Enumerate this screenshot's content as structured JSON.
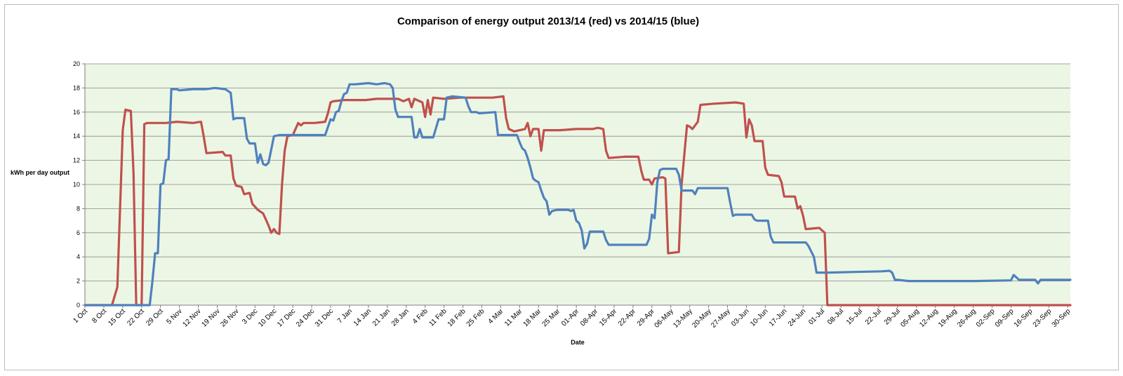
{
  "chart_data": {
    "type": "line",
    "title": "Comparison of energy output 2013/14 (red) vs 2014/15 (blue)",
    "xlabel": "Date",
    "ylabel": "kWh per day output",
    "ylim": [
      0,
      20
    ],
    "y_ticks": [
      "0",
      "2",
      "4",
      "6",
      "8",
      "10",
      "12",
      "14",
      "16",
      "18",
      "20"
    ],
    "grid": "horizontal",
    "background": "#ecf6e4",
    "x_tick_labels": [
      "1 Oct",
      "8 Oct",
      "15 Oct",
      "22 Oct",
      "29 Oct",
      "5 Nov",
      "12 Nov",
      "19 Nov",
      "26 Nov",
      "3 Dec",
      "10 Dec",
      "17 Dec",
      "24 Dec",
      "31 Dec",
      "7 Jan",
      "14 Jan",
      "21 Jan",
      "28 Jan",
      "4 Feb",
      "11 Feb",
      "18 Feb",
      "25 Feb",
      "4 Mar",
      "11 Mar",
      "18 Mar",
      "25 Mar",
      "01-Apr",
      "08-Apr",
      "15-Apr",
      "22-Apr",
      "29-Apr",
      "06-May",
      "13-May",
      "20-May",
      "27-May",
      "03-Jun",
      "10-Jun",
      "17-Jun",
      "24-Jun",
      "01-Jul",
      "08-Jul",
      "15-Jul",
      "22-Jul",
      "29-Jul",
      "05-Aug",
      "12-Aug",
      "19-Aug",
      "26-Aug",
      "02-Sep",
      "09-Sep",
      "16-Sep",
      "23-Sep",
      "30-Sep"
    ],
    "series": [
      {
        "color": "#c0504d",
        "points": [
          [
            0,
            0
          ],
          [
            10,
            0
          ],
          [
            12,
            1.5
          ],
          [
            14,
            14.5
          ],
          [
            15,
            16.2
          ],
          [
            17,
            16.1
          ],
          [
            18,
            11
          ],
          [
            19,
            0
          ],
          [
            21,
            0
          ],
          [
            22,
            15
          ],
          [
            23,
            15.1
          ],
          [
            30,
            15.1
          ],
          [
            34,
            15.2
          ],
          [
            40,
            15.1
          ],
          [
            43,
            15.2
          ],
          [
            44,
            14
          ],
          [
            45,
            12.6
          ],
          [
            51,
            12.7
          ],
          [
            52,
            12.4
          ],
          [
            54,
            12.4
          ],
          [
            55,
            10.5
          ],
          [
            56,
            9.9
          ],
          [
            58,
            9.8
          ],
          [
            59,
            9.2
          ],
          [
            61,
            9.3
          ],
          [
            62,
            8.4
          ],
          [
            64,
            7.9
          ],
          [
            66,
            7.6
          ],
          [
            68,
            6.6
          ],
          [
            69,
            6
          ],
          [
            70,
            6.3
          ],
          [
            71,
            6
          ],
          [
            72,
            5.9
          ],
          [
            73,
            10
          ],
          [
            74,
            12.8
          ],
          [
            75,
            14
          ],
          [
            77,
            14.1
          ],
          [
            79,
            15.1
          ],
          [
            80,
            14.9
          ],
          [
            81,
            15.1
          ],
          [
            85,
            15.1
          ],
          [
            89,
            15.2
          ],
          [
            90,
            15.9
          ],
          [
            91,
            16.8
          ],
          [
            92,
            16.9
          ],
          [
            96,
            17
          ],
          [
            104,
            17
          ],
          [
            108,
            17.1
          ],
          [
            116,
            17.1
          ],
          [
            118,
            16.9
          ],
          [
            120,
            17.1
          ],
          [
            121,
            16.4
          ],
          [
            122,
            17.1
          ],
          [
            125,
            16.8
          ],
          [
            126,
            15.6
          ],
          [
            127,
            17
          ],
          [
            128,
            15.8
          ],
          [
            129,
            17.2
          ],
          [
            133,
            17.1
          ],
          [
            139,
            17.2
          ],
          [
            145,
            17.2
          ],
          [
            151,
            17.2
          ],
          [
            155,
            17.3
          ],
          [
            156,
            15.5
          ],
          [
            157,
            14.6
          ],
          [
            159,
            14.4
          ],
          [
            163,
            14.6
          ],
          [
            164,
            15.1
          ],
          [
            165,
            14
          ],
          [
            166,
            14.6
          ],
          [
            168,
            14.6
          ],
          [
            169,
            12.8
          ],
          [
            170,
            14.5
          ],
          [
            176,
            14.5
          ],
          [
            182,
            14.6
          ],
          [
            188,
            14.6
          ],
          [
            190,
            14.7
          ],
          [
            192,
            14.6
          ],
          [
            193,
            12.8
          ],
          [
            194,
            12.2
          ],
          [
            200,
            12.3
          ],
          [
            205,
            12.3
          ],
          [
            206,
            11.2
          ],
          [
            207,
            10.4
          ],
          [
            209,
            10.4
          ],
          [
            210,
            10
          ],
          [
            211,
            10.5
          ],
          [
            214,
            10.6
          ],
          [
            215,
            10.5
          ],
          [
            216,
            4.3
          ],
          [
            220,
            4.4
          ],
          [
            221,
            10
          ],
          [
            223,
            14.9
          ],
          [
            224,
            14.8
          ],
          [
            225,
            14.6
          ],
          [
            227,
            15.2
          ],
          [
            228,
            16.6
          ],
          [
            233,
            16.7
          ],
          [
            241,
            16.8
          ],
          [
            244,
            16.7
          ],
          [
            245,
            13.9
          ],
          [
            246,
            15.4
          ],
          [
            247,
            14.9
          ],
          [
            248,
            13.6
          ],
          [
            251,
            13.6
          ],
          [
            252,
            11.4
          ],
          [
            253,
            10.8
          ],
          [
            257,
            10.7
          ],
          [
            258,
            10.2
          ],
          [
            259,
            9
          ],
          [
            263,
            9
          ],
          [
            264,
            8
          ],
          [
            265,
            8.2
          ],
          [
            266,
            7.4
          ],
          [
            267,
            6.3
          ],
          [
            272,
            6.4
          ],
          [
            274,
            6
          ],
          [
            275,
            0
          ],
          [
            365,
            0
          ]
        ]
      },
      {
        "color": "#4f81bd",
        "points": [
          [
            0,
            0
          ],
          [
            10,
            0
          ],
          [
            21,
            0
          ],
          [
            24,
            0
          ],
          [
            25,
            2
          ],
          [
            26,
            4.3
          ],
          [
            27,
            4.3
          ],
          [
            28,
            10
          ],
          [
            29,
            10.1
          ],
          [
            30,
            12
          ],
          [
            31,
            12.1
          ],
          [
            32,
            17.9
          ],
          [
            34,
            17.9
          ],
          [
            35,
            17.8
          ],
          [
            40,
            17.9
          ],
          [
            45,
            17.9
          ],
          [
            48,
            18
          ],
          [
            52,
            17.9
          ],
          [
            54,
            17.6
          ],
          [
            55,
            15.4
          ],
          [
            56,
            15.5
          ],
          [
            59,
            15.5
          ],
          [
            60,
            13.8
          ],
          [
            61,
            13.4
          ],
          [
            63,
            13.4
          ],
          [
            64,
            11.8
          ],
          [
            65,
            12.5
          ],
          [
            66,
            11.7
          ],
          [
            67,
            11.6
          ],
          [
            68,
            11.8
          ],
          [
            70,
            14
          ],
          [
            72,
            14.1
          ],
          [
            79,
            14.1
          ],
          [
            86,
            14.1
          ],
          [
            89,
            14.1
          ],
          [
            91,
            15.4
          ],
          [
            92,
            15.3
          ],
          [
            93,
            16
          ],
          [
            94,
            16.1
          ],
          [
            95,
            16.9
          ],
          [
            96,
            17.5
          ],
          [
            97,
            17.6
          ],
          [
            98,
            18.3
          ],
          [
            100,
            18.3
          ],
          [
            105,
            18.4
          ],
          [
            108,
            18.3
          ],
          [
            111,
            18.4
          ],
          [
            113,
            18.3
          ],
          [
            114,
            18
          ],
          [
            115,
            16.2
          ],
          [
            116,
            15.6
          ],
          [
            121,
            15.6
          ],
          [
            122,
            13.9
          ],
          [
            123,
            13.9
          ],
          [
            124,
            14.6
          ],
          [
            125,
            13.9
          ],
          [
            129,
            13.9
          ],
          [
            131,
            15.4
          ],
          [
            133,
            15.4
          ],
          [
            134,
            17.2
          ],
          [
            136,
            17.3
          ],
          [
            141,
            17.2
          ],
          [
            142,
            16.5
          ],
          [
            143,
            16
          ],
          [
            145,
            16
          ],
          [
            146,
            15.9
          ],
          [
            152,
            16
          ],
          [
            153,
            14.1
          ],
          [
            155,
            14.1
          ],
          [
            160,
            14.1
          ],
          [
            161,
            13.5
          ],
          [
            162,
            13
          ],
          [
            163,
            12.8
          ],
          [
            164,
            12.2
          ],
          [
            165,
            11.4
          ],
          [
            166,
            10.5
          ],
          [
            167,
            10.3
          ],
          [
            168,
            10.2
          ],
          [
            169,
            9.5
          ],
          [
            170,
            8.9
          ],
          [
            171,
            8.6
          ],
          [
            172,
            7.5
          ],
          [
            173,
            7.8
          ],
          [
            175,
            7.9
          ],
          [
            179,
            7.9
          ],
          [
            180,
            7.8
          ],
          [
            181,
            7.9
          ],
          [
            182,
            7
          ],
          [
            183,
            6.8
          ],
          [
            184,
            6.2
          ],
          [
            185,
            4.7
          ],
          [
            186,
            5.1
          ],
          [
            187,
            6.1
          ],
          [
            192,
            6.1
          ],
          [
            193,
            5.4
          ],
          [
            194,
            5
          ],
          [
            196,
            5
          ],
          [
            199,
            5
          ],
          [
            206,
            5
          ],
          [
            208,
            5
          ],
          [
            209,
            5.5
          ],
          [
            210,
            7.5
          ],
          [
            211,
            7.2
          ],
          [
            212,
            10.2
          ],
          [
            213,
            11.2
          ],
          [
            214,
            11.3
          ],
          [
            219,
            11.3
          ],
          [
            220,
            10.8
          ],
          [
            221,
            9.5
          ],
          [
            225,
            9.5
          ],
          [
            226,
            9.2
          ],
          [
            227,
            9.7
          ],
          [
            233,
            9.7
          ],
          [
            238,
            9.7
          ],
          [
            239,
            8.5
          ],
          [
            240,
            7.4
          ],
          [
            241,
            7.5
          ],
          [
            247,
            7.5
          ],
          [
            248,
            7.1
          ],
          [
            249,
            7
          ],
          [
            253,
            7
          ],
          [
            254,
            5.7
          ],
          [
            255,
            5.2
          ],
          [
            258,
            5.2
          ],
          [
            262,
            5.2
          ],
          [
            267,
            5.2
          ],
          [
            268,
            4.9
          ],
          [
            270,
            4
          ],
          [
            271,
            2.7
          ],
          [
            275,
            2.7
          ],
          [
            285,
            2.75
          ],
          [
            295,
            2.8
          ],
          [
            298,
            2.85
          ],
          [
            299,
            2.7
          ],
          [
            300,
            2.1
          ],
          [
            301,
            2.1
          ],
          [
            305,
            2
          ],
          [
            315,
            2
          ],
          [
            330,
            2
          ],
          [
            343,
            2.05
          ],
          [
            344,
            2.5
          ],
          [
            345,
            2.3
          ],
          [
            346,
            2.1
          ],
          [
            348,
            2.1
          ],
          [
            352,
            2.1
          ],
          [
            353,
            1.8
          ],
          [
            354,
            2.1
          ],
          [
            356,
            2.1
          ],
          [
            365,
            2.1
          ]
        ]
      }
    ]
  }
}
